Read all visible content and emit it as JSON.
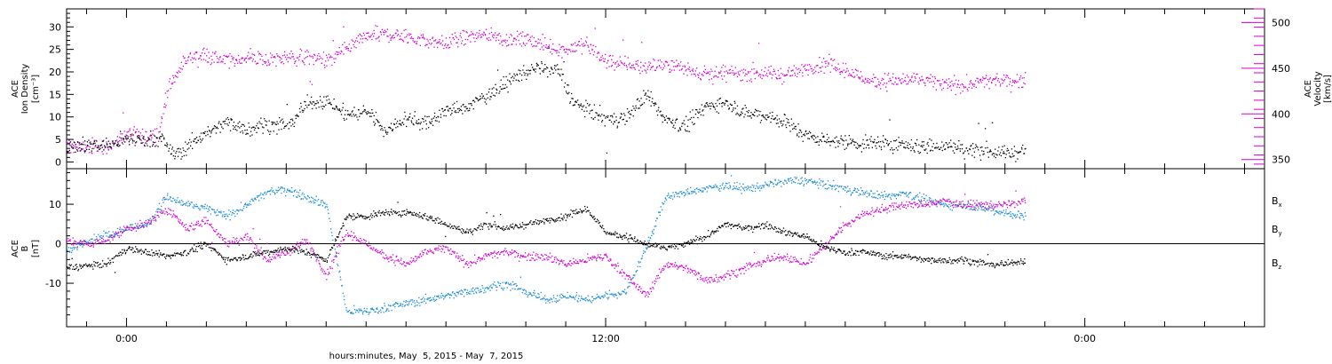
{
  "chart_data": [
    {
      "type": "scatter",
      "panel": "top",
      "title": "",
      "xlabel": "hours:minutes, May  5, 2015 - May  7, 2015",
      "x_tick_labels": [
        "0:00",
        "12:00",
        "0:00"
      ],
      "x_tick_hours": [
        0,
        12,
        24
      ],
      "x_range_hours": [
        -1.5,
        28.5
      ],
      "data_end_hour": 22.5,
      "ylabel_left": [
        "ACE",
        "Ion Density",
        "[cm⁻³]"
      ],
      "ylim_left": [
        -1.5,
        34
      ],
      "yticks_left": [
        0,
        5,
        10,
        15,
        20,
        25,
        30
      ],
      "ylabel_right": [
        "ACE",
        "Velocity",
        "[km/s]"
      ],
      "ylim_right": [
        340,
        515
      ],
      "yticks_right": [
        350,
        400,
        450,
        500
      ],
      "series": [
        {
          "name": "Ion Density",
          "axis": "left",
          "color": "#000000",
          "x": [
            -1.5,
            -0.5,
            0.0,
            0.5,
            0.9,
            1.2,
            1.8,
            2.5,
            3.0,
            3.5,
            4.0,
            4.5,
            5.0,
            5.5,
            6.0,
            6.5,
            7.0,
            7.5,
            8.0,
            8.5,
            9.0,
            9.5,
            9.9,
            10.3,
            10.8,
            11.2,
            11.6,
            12.0,
            12.5,
            13.0,
            13.5,
            14.0,
            14.5,
            15.0,
            15.5,
            16.0,
            16.5,
            17.0,
            17.5,
            18.0,
            18.5,
            19.0,
            19.5,
            20.0,
            20.5,
            21.0,
            21.5,
            22.0,
            22.5
          ],
          "y": [
            4.0,
            3.8,
            5.0,
            5.2,
            5.0,
            1.5,
            5.5,
            9.0,
            7.5,
            8.5,
            8.0,
            13.0,
            14.0,
            10.5,
            11.5,
            7.0,
            10.0,
            8.5,
            11.5,
            12.0,
            15.0,
            17.5,
            20.0,
            21.0,
            20.5,
            13.0,
            11.5,
            9.5,
            10.0,
            15.0,
            9.5,
            8.0,
            12.5,
            13.5,
            11.0,
            10.5,
            9.0,
            6.0,
            5.0,
            4.5,
            4.0,
            4.3,
            3.8,
            3.5,
            3.6,
            3.0,
            2.5,
            2.0,
            2.5
          ]
        },
        {
          "name": "Velocity",
          "axis": "right",
          "color": "#d400d4",
          "x": [
            -1.5,
            -0.5,
            0.0,
            0.5,
            0.8,
            1.0,
            1.5,
            2.0,
            2.5,
            3.0,
            3.5,
            4.0,
            4.5,
            5.0,
            5.5,
            6.0,
            6.5,
            7.0,
            7.5,
            8.0,
            8.5,
            9.0,
            9.5,
            10.0,
            10.5,
            11.0,
            11.5,
            12.0,
            12.5,
            13.0,
            13.5,
            14.0,
            14.5,
            15.0,
            15.5,
            16.0,
            16.5,
            17.0,
            17.5,
            18.0,
            18.5,
            19.0,
            19.5,
            20.0,
            20.5,
            21.0,
            21.5,
            22.0,
            22.5
          ],
          "y": [
            365,
            364,
            378,
            375,
            380,
            425,
            462,
            465,
            458,
            462,
            460,
            462,
            462,
            460,
            470,
            485,
            488,
            485,
            480,
            478,
            485,
            488,
            482,
            482,
            475,
            470,
            478,
            458,
            455,
            452,
            455,
            450,
            445,
            444,
            446,
            445,
            443,
            450,
            455,
            448,
            438,
            437,
            438,
            437,
            432,
            432,
            436,
            437,
            438
          ]
        }
      ]
    },
    {
      "type": "scatter",
      "panel": "bottom",
      "title": "",
      "xlabel": "hours:minutes, May  5, 2015 - May  7, 2015",
      "ylabel_left": [
        "ACE",
        "B",
        "[nT]"
      ],
      "ylim": [
        -21,
        19
      ],
      "yticks": [
        -10,
        0,
        10
      ],
      "zero_line": true,
      "series": [
        {
          "name": "Bx",
          "label_main": "B",
          "label_sub": "x",
          "color": "#000000",
          "x": [
            -1.5,
            -1.0,
            -0.5,
            0.0,
            0.5,
            1.0,
            1.5,
            2.0,
            2.5,
            3.0,
            3.5,
            4.0,
            4.5,
            5.0,
            5.5,
            6.0,
            6.5,
            7.0,
            7.5,
            8.0,
            8.5,
            9.0,
            9.5,
            10.0,
            10.5,
            11.0,
            11.5,
            12.0,
            12.5,
            13.0,
            13.5,
            14.0,
            14.5,
            15.0,
            15.5,
            16.0,
            16.5,
            17.0,
            17.5,
            18.0,
            18.5,
            19.0,
            19.5,
            20.0,
            20.5,
            21.0,
            21.5,
            22.0,
            22.5
          ],
          "y": [
            -6,
            -5.5,
            -5,
            -1,
            -2,
            -3,
            -2,
            0,
            -4,
            -3,
            -2,
            -1,
            -2,
            -4,
            7,
            7,
            8,
            8,
            7,
            5,
            3,
            5,
            4,
            5,
            6,
            7,
            9,
            3,
            2,
            0,
            -1,
            0,
            2,
            5,
            4,
            5,
            3,
            2,
            -1,
            -2,
            -2,
            -3,
            -3,
            -4,
            -4,
            -4,
            -5,
            -5,
            -4
          ]
        },
        {
          "name": "By",
          "label_main": "B",
          "label_sub": "y",
          "color": "#1a8cd8",
          "x": [
            -1.5,
            -1.0,
            -0.5,
            0.0,
            0.5,
            1.0,
            1.5,
            2.0,
            2.5,
            3.0,
            3.5,
            4.0,
            4.5,
            5.0,
            5.5,
            6.0,
            6.5,
            7.0,
            7.5,
            8.0,
            8.5,
            9.0,
            9.5,
            10.0,
            10.5,
            11.0,
            11.5,
            12.0,
            12.5,
            13.0,
            13.5,
            14.0,
            14.5,
            15.0,
            15.5,
            16.0,
            16.5,
            17.0,
            17.5,
            18.0,
            18.5,
            19.0,
            19.5,
            20.0,
            20.5,
            21.0,
            21.5,
            22.0,
            22.5
          ],
          "y": [
            -2,
            1,
            2,
            4,
            5,
            12,
            10,
            9,
            7,
            10,
            13,
            14,
            12,
            10,
            -17,
            -17,
            -16,
            -15,
            -14,
            -13,
            -12,
            -11,
            -10,
            -12,
            -14,
            -13,
            -14,
            -13,
            -12,
            -1,
            12,
            13,
            14,
            15,
            14,
            15,
            16,
            16,
            15,
            14,
            13,
            12,
            13,
            11,
            10,
            10,
            9,
            8,
            7
          ]
        },
        {
          "name": "Bz",
          "label_main": "B",
          "label_sub": "z",
          "color": "#d400d4",
          "x": [
            -1.5,
            -1.0,
            -0.5,
            0.0,
            0.5,
            1.0,
            1.5,
            2.0,
            2.5,
            3.0,
            3.5,
            4.0,
            4.5,
            5.0,
            5.5,
            6.0,
            6.5,
            7.0,
            7.5,
            8.0,
            8.5,
            9.0,
            9.5,
            10.0,
            10.5,
            11.0,
            11.5,
            12.0,
            12.5,
            13.0,
            13.5,
            14.0,
            14.5,
            15.0,
            15.5,
            16.0,
            16.5,
            17.0,
            17.5,
            18.0,
            18.5,
            19.0,
            19.5,
            20.0,
            20.5,
            21.0,
            21.5,
            22.0,
            22.5
          ],
          "y": [
            1,
            0,
            1,
            4,
            5,
            9,
            4,
            6,
            0,
            2,
            -4,
            -2,
            1,
            -8,
            3,
            0,
            -3,
            -5,
            -2,
            -1,
            -5,
            -3,
            -2,
            -3,
            -3,
            -5,
            -4,
            -3,
            -8,
            -13,
            -5,
            -6,
            -9,
            -8,
            -6,
            -4,
            -3,
            -5,
            0,
            5,
            8,
            9,
            10,
            10,
            11,
            10,
            10,
            10,
            11
          ]
        }
      ]
    }
  ]
}
